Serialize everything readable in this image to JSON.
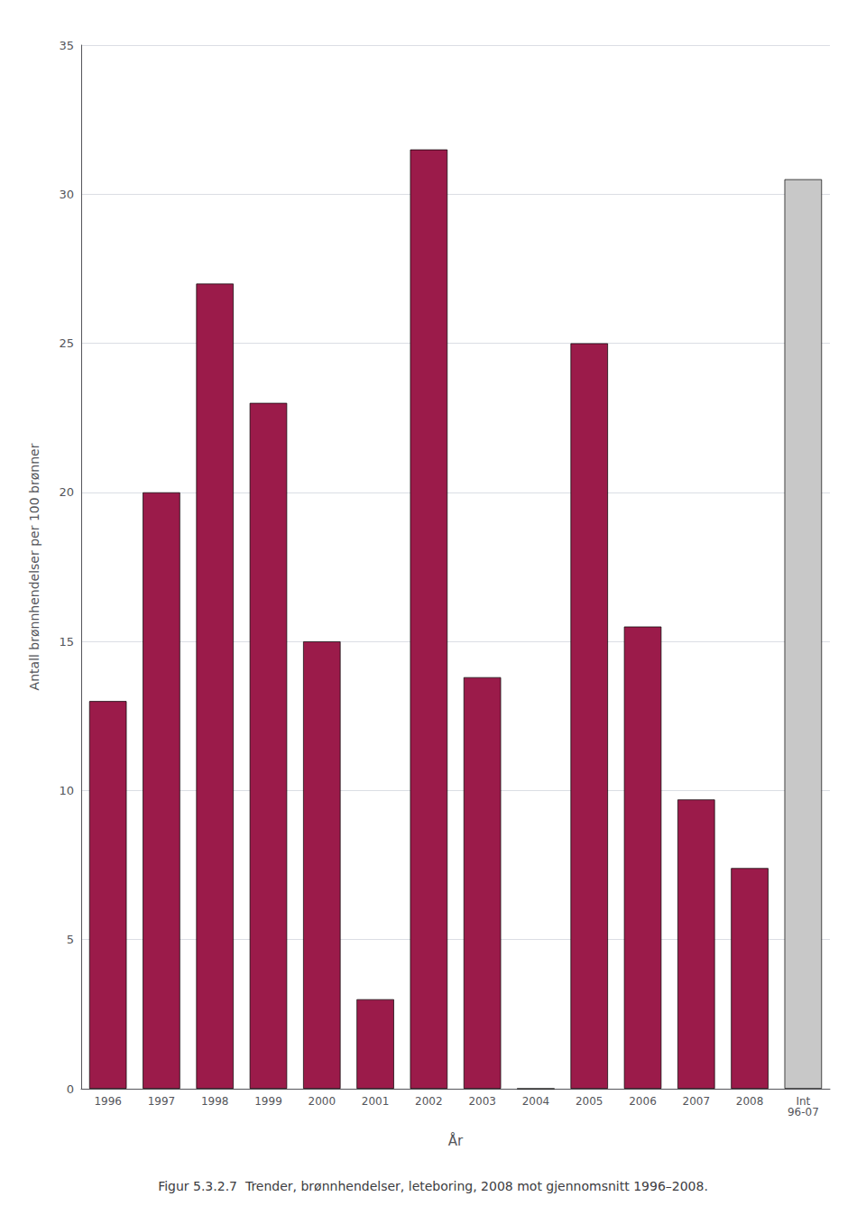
{
  "chart_data": {
    "type": "bar",
    "title": "Figur 5.3.2.7  Trender, brønnhendelser, leteboring, 2008 mot gjennomsnitt 1996–2008.",
    "categories": [
      "1996",
      "1997",
      "1998",
      "1999",
      "2000",
      "2001",
      "2002",
      "2003",
      "2004",
      "2005",
      "2006",
      "2007",
      "2008",
      "Int\n96-07"
    ],
    "values": [
      13.0,
      20.0,
      27.0,
      23.0,
      15.0,
      3.0,
      31.5,
      13.8,
      0.0,
      25.0,
      15.5,
      9.7,
      7.4,
      30.5
    ],
    "colors": [
      "#9B1B4A",
      "#9B1B4A",
      "#9B1B4A",
      "#9B1B4A",
      "#9B1B4A",
      "#9B1B4A",
      "#9B1B4A",
      "#9B1B4A",
      "#9B1B4A",
      "#9B1B4A",
      "#9B1B4A",
      "#9B1B4A",
      "#9B1B4A",
      "#C8C8C8"
    ],
    "xlabel": "År",
    "ylabel": "Antall brønnhendelser per 100 brønner",
    "ylim": [
      0,
      35
    ],
    "yticks": [
      0,
      5,
      10,
      15,
      20,
      25,
      30,
      35
    ],
    "grid": true
  }
}
